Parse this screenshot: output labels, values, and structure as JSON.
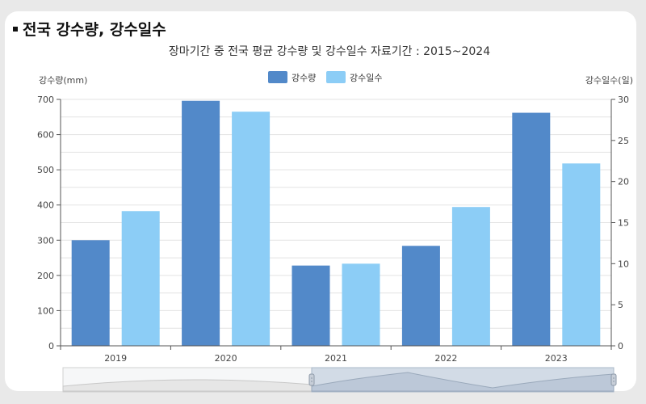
{
  "section_title": "전국 강수량, 강수일수",
  "chart_data": {
    "type": "bar",
    "title": "장마기간 중 전국 평균 강수량 및 강수일수 자료기간 : 2015~2024",
    "categories": [
      "2019",
      "2020",
      "2021",
      "2022",
      "2023"
    ],
    "series": [
      {
        "name": "강수량",
        "axis": "left",
        "color": "#5289c9",
        "values": [
          300,
          696,
          228,
          284,
          662
        ]
      },
      {
        "name": "강수일수",
        "axis": "right",
        "color": "#8ccdf6",
        "values": [
          16.4,
          28.5,
          10,
          16.9,
          22.2
        ]
      }
    ],
    "y_left": {
      "label": "강수량(mm)",
      "ylim": [
        0,
        700
      ],
      "ticks": [
        0,
        100,
        200,
        300,
        400,
        500,
        600,
        700
      ]
    },
    "y_right": {
      "label": "강수일수(일)",
      "ylim": [
        0,
        30
      ],
      "ticks": [
        0,
        5,
        10,
        15,
        20,
        25,
        30
      ]
    },
    "grid": true,
    "legend_position": "top-center",
    "range_slider": true
  }
}
